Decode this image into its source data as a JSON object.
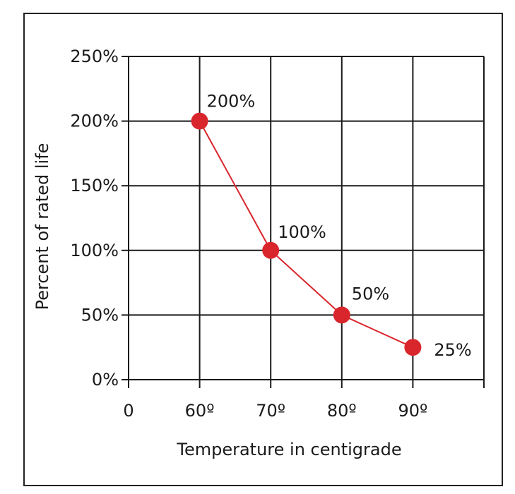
{
  "chart_data": {
    "type": "line",
    "x": [
      60,
      70,
      80,
      90
    ],
    "y": [
      200,
      100,
      50,
      25
    ],
    "data_labels": [
      "200%",
      "100%",
      "50%",
      "25%"
    ],
    "xlabel": "Temperature in centigrade",
    "ylabel": "Percent of rated life",
    "xlim": [
      50,
      100
    ],
    "ylim": [
      0,
      250
    ],
    "x_ticks": [
      {
        "value": 50,
        "label": "0"
      },
      {
        "value": 60,
        "label": "60º"
      },
      {
        "value": 70,
        "label": "70º"
      },
      {
        "value": 80,
        "label": "80º"
      },
      {
        "value": 90,
        "label": "90º"
      }
    ],
    "y_ticks": [
      {
        "value": 0,
        "label": "0%"
      },
      {
        "value": 50,
        "label": "50%"
      },
      {
        "value": 100,
        "label": "100%"
      },
      {
        "value": 150,
        "label": "150%"
      },
      {
        "value": 200,
        "label": "200%"
      },
      {
        "value": 250,
        "label": "250%"
      }
    ],
    "grid": true,
    "colors": {
      "series": "#d9262c",
      "grid": "#1a1a1a"
    }
  }
}
